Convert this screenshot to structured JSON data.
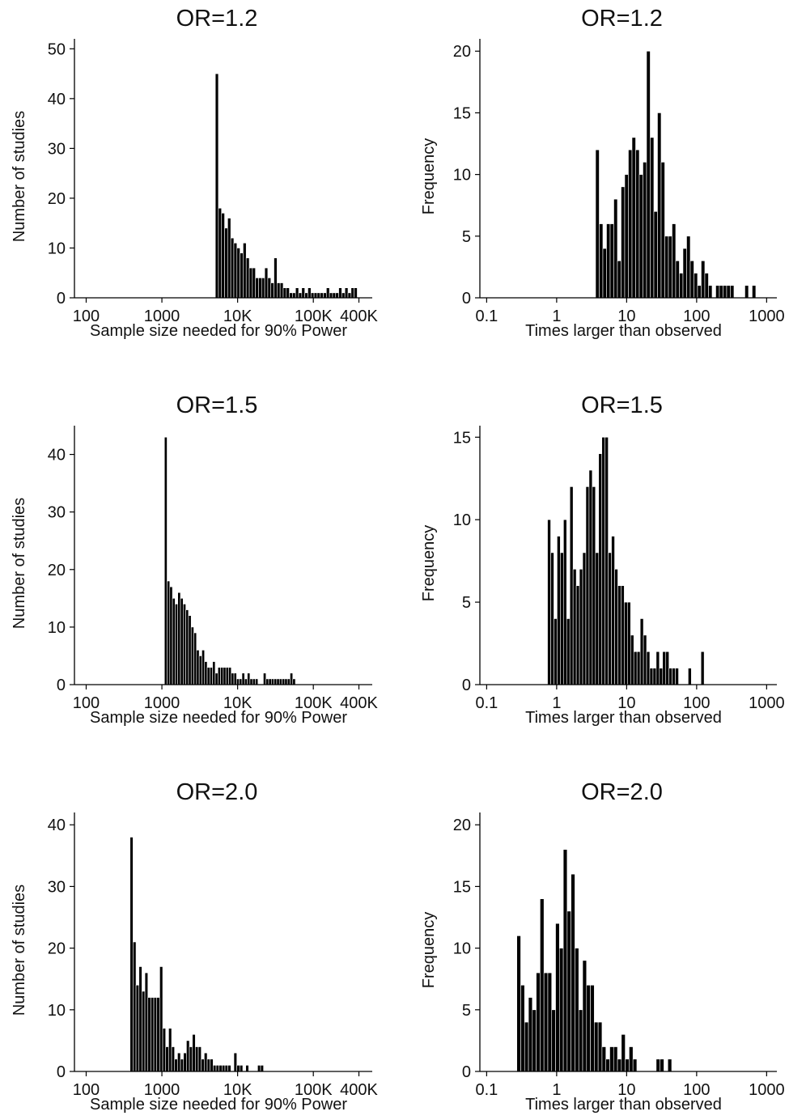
{
  "chart_data": [
    {
      "type": "bar",
      "title": "OR=1.2",
      "xlabel": "Sample size needed for 90% Power",
      "ylabel": "Number of studies",
      "x_scale": "log",
      "xlim": [
        70,
        600000
      ],
      "ylim": [
        0,
        52
      ],
      "xticks": [
        {
          "value": 100,
          "label": "100"
        },
        {
          "value": 1000,
          "label": "1000"
        },
        {
          "value": 10000,
          "label": "10K"
        },
        {
          "value": 100000,
          "label": "100K"
        },
        {
          "value": 400000,
          "label": "400K"
        }
      ],
      "yticks": [
        {
          "value": 0,
          "label": "0"
        },
        {
          "value": 10,
          "label": "10"
        },
        {
          "value": 20,
          "label": "20"
        },
        {
          "value": 30,
          "label": "30"
        },
        {
          "value": 40,
          "label": "40"
        },
        {
          "value": 50,
          "label": "50"
        }
      ],
      "grid": false,
      "bin_start": 5080,
      "bin_end": 380000,
      "values": [
        45,
        18,
        17,
        14,
        16,
        12,
        11,
        10,
        9,
        11,
        8,
        6,
        6,
        4,
        4,
        4,
        6,
        4,
        3,
        8,
        3,
        3,
        2,
        2,
        1,
        1,
        2,
        1,
        2,
        1,
        2,
        1,
        1,
        1,
        1,
        1,
        2,
        1,
        1,
        1,
        2,
        1,
        2,
        1,
        2,
        2
      ]
    },
    {
      "type": "bar",
      "title": "OR=1.2",
      "xlabel": "Times larger than observed",
      "ylabel": "Frequency",
      "x_scale": "log",
      "xlim": [
        0.08,
        1400
      ],
      "ylim": [
        0,
        21
      ],
      "xticks": [
        {
          "value": 0.1,
          "label": "0.1"
        },
        {
          "value": 1,
          "label": "1"
        },
        {
          "value": 10,
          "label": "10"
        },
        {
          "value": 100,
          "label": "100"
        },
        {
          "value": 1000,
          "label": "1000"
        }
      ],
      "yticks": [
        {
          "value": 0,
          "label": "0"
        },
        {
          "value": 5,
          "label": "5"
        },
        {
          "value": 10,
          "label": "10"
        },
        {
          "value": 15,
          "label": "15"
        },
        {
          "value": 20,
          "label": "20"
        }
      ],
      "grid": false,
      "bin_start": 3.6,
      "bin_end": 700,
      "values": [
        12,
        6,
        4,
        6,
        6,
        8,
        3,
        9,
        10,
        12,
        13,
        12,
        10,
        11,
        20,
        13,
        7,
        15,
        11,
        5,
        5,
        6,
        3,
        2,
        4,
        5,
        3,
        2,
        1,
        3,
        2,
        1,
        0,
        1,
        1,
        1,
        1,
        1,
        0,
        0,
        0,
        1,
        0,
        1
      ]
    },
    {
      "type": "bar",
      "title": "OR=1.5",
      "xlabel": "Sample size needed for 90% Power",
      "ylabel": "Number of studies",
      "x_scale": "log",
      "xlim": [
        70,
        600000
      ],
      "ylim": [
        0,
        45
      ],
      "xticks": [
        {
          "value": 100,
          "label": "100"
        },
        {
          "value": 1000,
          "label": "1000"
        },
        {
          "value": 10000,
          "label": "10K"
        },
        {
          "value": 100000,
          "label": "100K"
        },
        {
          "value": 400000,
          "label": "400K"
        }
      ],
      "yticks": [
        {
          "value": 0,
          "label": "0"
        },
        {
          "value": 10,
          "label": "10"
        },
        {
          "value": 20,
          "label": "20"
        },
        {
          "value": 30,
          "label": "30"
        },
        {
          "value": 40,
          "label": "40"
        }
      ],
      "grid": false,
      "bin_start": 1080,
      "bin_end": 58000,
      "values": [
        43,
        18,
        17,
        15,
        14,
        16,
        15,
        14,
        13,
        12,
        10,
        9,
        6,
        5,
        6,
        4,
        3,
        3,
        4,
        2,
        3,
        3,
        3,
        3,
        3,
        2,
        2,
        1,
        1,
        2,
        1,
        2,
        1,
        1,
        1,
        0,
        0,
        2,
        1,
        1,
        1,
        1,
        1,
        1,
        1,
        1,
        1,
        2,
        1
      ]
    },
    {
      "type": "bar",
      "title": "OR=1.5",
      "xlabel": "Times larger than observed",
      "ylabel": "Frequency",
      "x_scale": "log",
      "xlim": [
        0.08,
        1400
      ],
      "ylim": [
        0,
        15.7
      ],
      "xticks": [
        {
          "value": 0.1,
          "label": "0.1"
        },
        {
          "value": 1,
          "label": "1"
        },
        {
          "value": 10,
          "label": "10"
        },
        {
          "value": 100,
          "label": "100"
        },
        {
          "value": 1000,
          "label": "1000"
        }
      ],
      "yticks": [
        {
          "value": 0,
          "label": "0"
        },
        {
          "value": 5,
          "label": "5"
        },
        {
          "value": 10,
          "label": "10"
        },
        {
          "value": 15,
          "label": "15"
        }
      ],
      "grid": false,
      "bin_start": 0.74,
      "bin_end": 128,
      "values": [
        10,
        8,
        4,
        9,
        8,
        10,
        4,
        12,
        7,
        6,
        7,
        8,
        12,
        13,
        12,
        8,
        14,
        15,
        15,
        8,
        9,
        7,
        6,
        6,
        5,
        5,
        3,
        2,
        2,
        4,
        3,
        2,
        1,
        1,
        2,
        1,
        2,
        2,
        1,
        1,
        1,
        0,
        0,
        0,
        1,
        0,
        0,
        0,
        2
      ]
    },
    {
      "type": "bar",
      "title": "OR=2.0",
      "xlabel": "Sample size needed for 90% Power",
      "ylabel": "Number of studies",
      "x_scale": "log",
      "xlim": [
        70,
        600000
      ],
      "ylim": [
        0,
        42
      ],
      "xticks": [
        {
          "value": 100,
          "label": "100"
        },
        {
          "value": 1000,
          "label": "1000"
        },
        {
          "value": 10000,
          "label": "10K"
        },
        {
          "value": 100000,
          "label": "100K"
        },
        {
          "value": 400000,
          "label": "400K"
        }
      ],
      "yticks": [
        {
          "value": 0,
          "label": "0"
        },
        {
          "value": 10,
          "label": "10"
        },
        {
          "value": 20,
          "label": "20"
        },
        {
          "value": 30,
          "label": "30"
        },
        {
          "value": 40,
          "label": "40"
        }
      ],
      "grid": false,
      "bin_start": 380,
      "bin_end": 22000,
      "values": [
        38,
        21,
        14,
        17,
        13,
        16,
        12,
        12,
        12,
        12,
        17,
        7,
        4,
        7,
        4,
        2,
        3,
        2,
        3,
        5,
        4,
        6,
        4,
        4,
        2,
        3,
        2,
        2,
        1,
        1,
        1,
        1,
        1,
        1,
        0,
        3,
        1,
        1,
        0,
        1,
        0,
        0,
        0,
        1,
        1
      ]
    },
    {
      "type": "bar",
      "title": "OR=2.0",
      "xlabel": "Times larger than observed",
      "ylabel": "Frequency",
      "x_scale": "log",
      "xlim": [
        0.08,
        1400
      ],
      "ylim": [
        0,
        21
      ],
      "xticks": [
        {
          "value": 0.1,
          "label": "0.1"
        },
        {
          "value": 1,
          "label": "1"
        },
        {
          "value": 10,
          "label": "10"
        },
        {
          "value": 100,
          "label": "100"
        },
        {
          "value": 1000,
          "label": "1000"
        }
      ],
      "yticks": [
        {
          "value": 0,
          "label": "0"
        },
        {
          "value": 5,
          "label": "5"
        },
        {
          "value": 10,
          "label": "10"
        },
        {
          "value": 15,
          "label": "15"
        },
        {
          "value": 20,
          "label": "20"
        }
      ],
      "grid": false,
      "bin_start": 0.27,
      "bin_end": 44,
      "values": [
        11,
        7,
        4,
        6,
        5,
        8,
        14,
        8,
        8,
        5,
        12,
        10,
        18,
        13,
        16,
        10,
        5,
        9,
        7,
        7,
        4,
        4,
        2,
        1,
        2,
        2,
        1,
        3,
        1,
        2,
        1,
        0,
        0,
        0,
        0,
        0,
        1,
        1,
        0,
        1
      ]
    }
  ]
}
